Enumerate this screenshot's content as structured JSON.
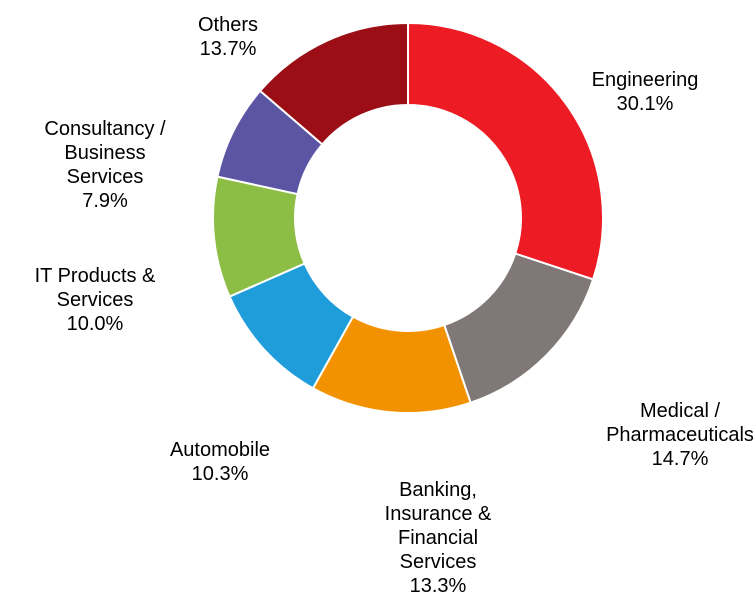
{
  "chart_data": {
    "type": "donut",
    "categories": [
      "Engineering",
      "Medical /\nPharmaceuticals",
      "Banking,\nInsurance &\nFinancial\nServices",
      "Automobile",
      "IT Products &\nServices",
      "Consultancy /\nBusiness\nServices",
      "Others"
    ],
    "values": [
      30.1,
      14.7,
      13.3,
      10.3,
      10.0,
      7.9,
      13.7
    ],
    "value_labels": [
      "30.1%",
      "14.7%",
      "13.3%",
      "10.3%",
      "10.0%",
      "7.9%",
      "13.7%"
    ],
    "colors": [
      "#ed1c24",
      "#807877",
      "#f39200",
      "#1f9ddb",
      "#8cbd45",
      "#5b55a3",
      "#9b0e15"
    ]
  }
}
